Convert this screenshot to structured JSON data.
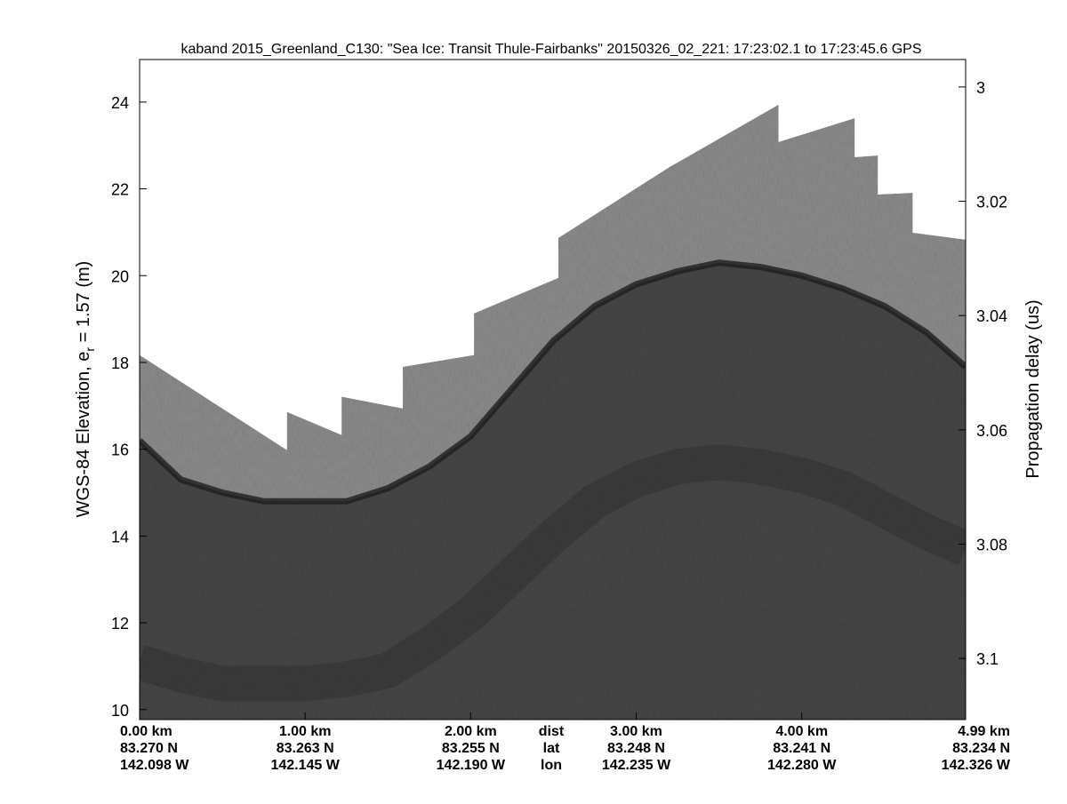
{
  "chart_data": {
    "type": "echogram",
    "title": "kaband 2015_Greenland_C130: \"Sea Ice: Transit Thule-Fairbanks\"  20150326_02_221: 17:23:02.1 to 17:23:45.6 GPS",
    "ylabel": [
      "WGS-84 Elevation, e",
      "r",
      " = 1.57 (m)"
    ],
    "y2label": "Propagation delay (us)",
    "xlim": [
      0,
      4.99
    ],
    "xticks": [
      {
        "value": 0,
        "label": "0.00 km"
      },
      {
        "value": 1,
        "label": "1.00 km"
      },
      {
        "value": 2,
        "label": "2.00 km"
      },
      {
        "value": 3,
        "label": "3.00 km"
      },
      {
        "value": 4,
        "label": "4.00 km"
      },
      {
        "value": 4.99,
        "label": "4.99 km"
      }
    ],
    "xtick_lat": [
      "83.270 N",
      "83.263 N",
      "83.255 N",
      "83.248 N",
      "83.241 N",
      "83.234 N"
    ],
    "xtick_lon": [
      "142.098 W",
      "142.145 W",
      "142.190 W",
      "142.235 W",
      "142.280 W",
      "142.326 W"
    ],
    "xtick_row_labels": [
      "dist",
      "lat",
      "lon"
    ],
    "ylim": [
      9.77,
      24.98
    ],
    "yticks": [
      10,
      12,
      14,
      16,
      18,
      20,
      22,
      24
    ],
    "y2lim": [
      2.9952,
      3.1107
    ],
    "y2_reversed": true,
    "y2ticks": [
      3,
      3.02,
      3.04,
      3.06,
      3.08,
      3.1
    ],
    "x": [
      0,
      0.89,
      0.89,
      1.22,
      1.22,
      1.59,
      1.59,
      2.02,
      2.02,
      2.53,
      2.53,
      3.2,
      3.86,
      3.86,
      4.32,
      4.32,
      4.46,
      4.46,
      4.67,
      4.67,
      4.99
    ],
    "top": [
      18.17,
      15.98,
      16.86,
      16.33,
      17.21,
      16.94,
      17.9,
      18.17,
      19.13,
      19.95,
      20.87,
      22.5,
      23.94,
      23.08,
      23.63,
      22.73,
      22.77,
      21.87,
      21.91,
      20.99,
      20.83
    ],
    "profile_x": [
      0,
      0.25,
      0.5,
      0.75,
      1,
      1.25,
      1.5,
      1.75,
      2,
      2.25,
      2.5,
      2.75,
      3,
      3.25,
      3.5,
      3.75,
      4,
      4.25,
      4.5,
      4.75,
      4.99
    ],
    "surface": [
      16.2,
      15.3,
      15.0,
      14.8,
      14.8,
      14.8,
      15.1,
      15.6,
      16.3,
      17.4,
      18.5,
      19.3,
      19.8,
      20.1,
      20.3,
      20.2,
      20.0,
      19.7,
      19.3,
      18.7,
      17.9
    ],
    "layer": [
      11.1,
      10.8,
      10.6,
      10.6,
      10.6,
      10.7,
      10.9,
      11.5,
      12.2,
      13.1,
      14.0,
      14.8,
      15.3,
      15.6,
      15.7,
      15.6,
      15.4,
      15.1,
      14.6,
      14.1,
      13.7
    ],
    "colors": {
      "upper": "#8a8a8a",
      "lower": "#454545",
      "surface": "#1e1e1e",
      "layer": "#333333"
    }
  }
}
